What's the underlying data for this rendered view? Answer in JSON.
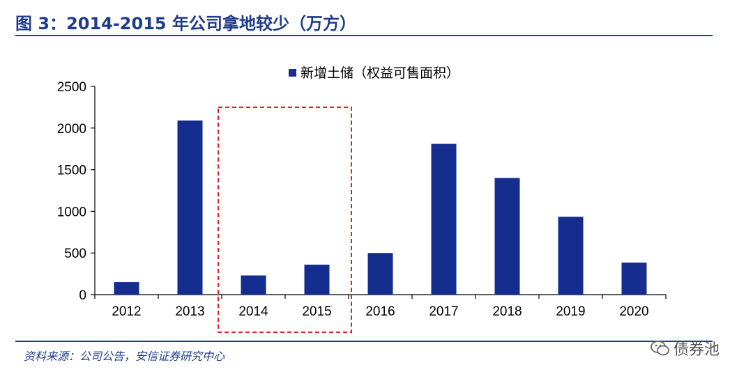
{
  "figure_title": "图 3：2014-2015 年公司拿地较少（万方）",
  "source_note": "资料来源：公司公告，安信证券研究中心",
  "watermark": {
    "text": "债券池",
    "icon": "wechat-icon"
  },
  "colors": {
    "bar": "#142d8f",
    "title": "#1f3c88",
    "highlight": "#e02020"
  },
  "chart_data": {
    "type": "bar",
    "categories": [
      "2012",
      "2013",
      "2014",
      "2015",
      "2016",
      "2017",
      "2018",
      "2019",
      "2020"
    ],
    "series": [
      {
        "name": "新增土储（权益可售面积）",
        "values": [
          150,
          2090,
          230,
          360,
          500,
          1810,
          1400,
          935,
          385
        ]
      }
    ],
    "ylim": [
      0,
      2500
    ],
    "yticks": [
      "0",
      "500",
      "1000",
      "1500",
      "2000",
      "2500"
    ],
    "grid": false,
    "legend": "top",
    "highlight_categories": [
      "2014",
      "2015"
    ]
  }
}
